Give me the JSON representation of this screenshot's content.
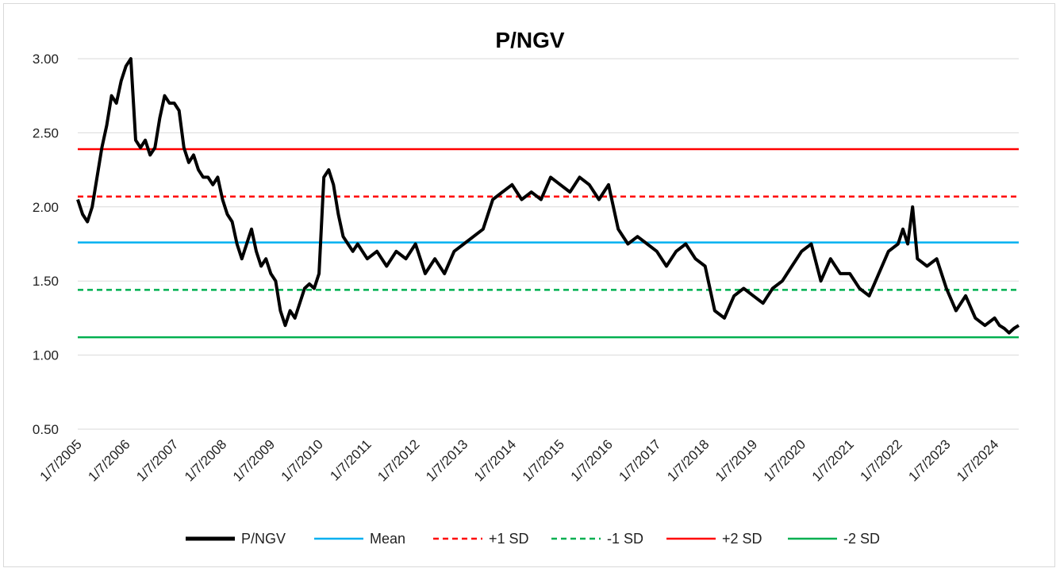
{
  "chart_data": {
    "type": "line",
    "title": "P/NGV",
    "xlabel": "",
    "ylabel": "",
    "ylim": [
      0.5,
      3.0
    ],
    "yticks": [
      "0.50",
      "1.00",
      "1.50",
      "2.00",
      "2.50",
      "3.00"
    ],
    "xticks": [
      "1/7/2005",
      "1/7/2006",
      "1/7/2007",
      "1/7/2008",
      "1/7/2009",
      "1/7/2010",
      "1/7/2011",
      "1/7/2012",
      "1/7/2013",
      "1/7/2014",
      "1/7/2015",
      "1/7/2016",
      "1/7/2017",
      "1/7/2018",
      "1/7/2019",
      "1/7/2020",
      "1/7/2021",
      "1/7/2022",
      "1/7/2023",
      "1/7/2024"
    ],
    "grid": "horizontal",
    "legend_position": "bottom",
    "series": [
      {
        "name": "P/NGV",
        "color": "#000000",
        "style": "solid",
        "x": [
          2005.0,
          2005.1,
          2005.2,
          2005.3,
          2005.4,
          2005.5,
          2005.6,
          2005.7,
          2005.8,
          2005.9,
          2006.0,
          2006.1,
          2006.2,
          2006.3,
          2006.4,
          2006.5,
          2006.6,
          2006.7,
          2006.8,
          2006.9,
          2007.0,
          2007.1,
          2007.2,
          2007.3,
          2007.4,
          2007.5,
          2007.6,
          2007.7,
          2007.8,
          2007.9,
          2008.0,
          2008.1,
          2008.2,
          2008.3,
          2008.4,
          2008.5,
          2008.6,
          2008.7,
          2008.8,
          2008.9,
          2009.0,
          2009.1,
          2009.2,
          2009.3,
          2009.4,
          2009.5,
          2009.6,
          2009.7,
          2009.8,
          2009.9,
          2010.0,
          2010.1,
          2010.2,
          2010.3,
          2010.4,
          2010.5,
          2010.6,
          2010.7,
          2010.8,
          2010.9,
          2011.0,
          2011.2,
          2011.4,
          2011.6,
          2011.8,
          2012.0,
          2012.2,
          2012.4,
          2012.6,
          2012.8,
          2013.0,
          2013.2,
          2013.4,
          2013.6,
          2013.8,
          2014.0,
          2014.2,
          2014.4,
          2014.6,
          2014.8,
          2015.0,
          2015.2,
          2015.4,
          2015.6,
          2015.8,
          2016.0,
          2016.2,
          2016.4,
          2016.6,
          2016.8,
          2017.0,
          2017.2,
          2017.4,
          2017.6,
          2017.8,
          2018.0,
          2018.2,
          2018.4,
          2018.6,
          2018.8,
          2019.0,
          2019.2,
          2019.4,
          2019.6,
          2019.8,
          2020.0,
          2020.2,
          2020.4,
          2020.6,
          2020.8,
          2021.0,
          2021.2,
          2021.4,
          2021.6,
          2021.8,
          2022.0,
          2022.1,
          2022.2,
          2022.3,
          2022.4,
          2022.6,
          2022.8,
          2023.0,
          2023.2,
          2023.4,
          2023.6,
          2023.8,
          2024.0,
          2024.1,
          2024.2,
          2024.3,
          2024.4,
          2024.5
        ],
        "values": [
          2.05,
          1.95,
          1.9,
          2.0,
          2.2,
          2.4,
          2.55,
          2.75,
          2.7,
          2.85,
          2.95,
          3.0,
          2.45,
          2.4,
          2.45,
          2.35,
          2.4,
          2.6,
          2.75,
          2.7,
          2.7,
          2.65,
          2.4,
          2.3,
          2.35,
          2.25,
          2.2,
          2.2,
          2.15,
          2.2,
          2.05,
          1.95,
          1.9,
          1.75,
          1.65,
          1.75,
          1.85,
          1.7,
          1.6,
          1.65,
          1.55,
          1.5,
          1.3,
          1.2,
          1.3,
          1.25,
          1.35,
          1.45,
          1.48,
          1.45,
          1.55,
          2.2,
          2.25,
          2.15,
          1.95,
          1.8,
          1.75,
          1.7,
          1.75,
          1.7,
          1.65,
          1.7,
          1.6,
          1.7,
          1.65,
          1.75,
          1.55,
          1.65,
          1.55,
          1.7,
          1.75,
          1.8,
          1.85,
          2.05,
          2.1,
          2.15,
          2.05,
          2.1,
          2.05,
          2.2,
          2.15,
          2.1,
          2.2,
          2.15,
          2.05,
          2.15,
          1.85,
          1.75,
          1.8,
          1.75,
          1.7,
          1.6,
          1.7,
          1.75,
          1.65,
          1.6,
          1.3,
          1.25,
          1.4,
          1.45,
          1.4,
          1.35,
          1.45,
          1.5,
          1.6,
          1.7,
          1.75,
          1.5,
          1.65,
          1.55,
          1.55,
          1.45,
          1.4,
          1.55,
          1.7,
          1.75,
          1.85,
          1.75,
          2.0,
          1.65,
          1.6,
          1.65,
          1.45,
          1.3,
          1.4,
          1.25,
          1.2,
          1.25,
          1.2,
          1.18,
          1.15,
          1.18,
          1.2
        ]
      },
      {
        "name": "Mean",
        "color": "#00b0f0",
        "style": "solid",
        "value": 1.76
      },
      {
        "name": "+1 SD",
        "color": "#ff0000",
        "style": "dashed",
        "value": 2.07
      },
      {
        "name": "-1 SD",
        "color": "#00b050",
        "style": "dashed",
        "value": 1.44
      },
      {
        "name": "+2 SD",
        "color": "#ff0000",
        "style": "solid",
        "value": 2.39
      },
      {
        "name": "-2 SD",
        "color": "#00b050",
        "style": "solid",
        "value": 1.12
      }
    ]
  }
}
